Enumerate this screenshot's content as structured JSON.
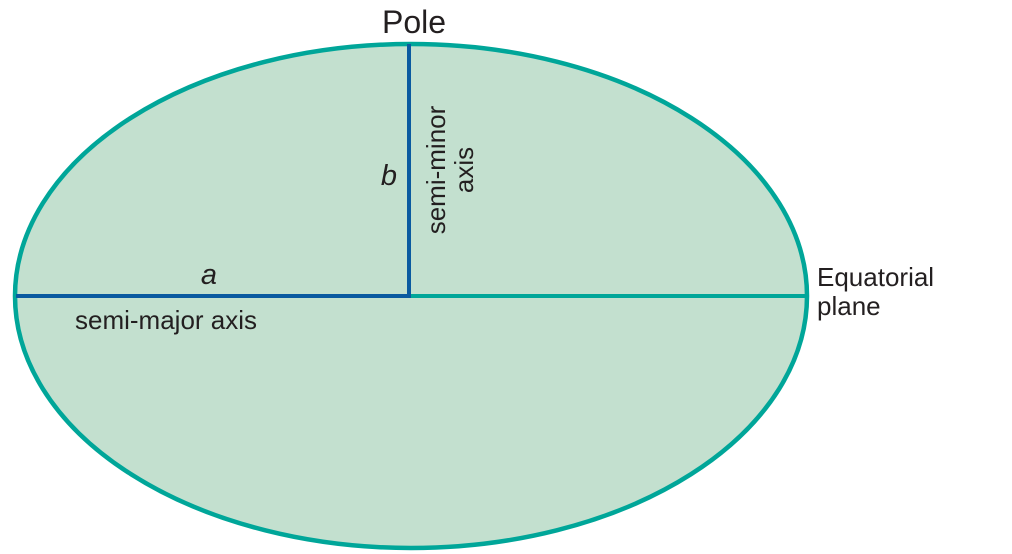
{
  "diagram": {
    "labels": {
      "pole": "Pole",
      "b": "b",
      "semi_minor_line1": "semi-minor",
      "semi_minor_line2": "axis",
      "a": "a",
      "semi_major": "semi-major axis",
      "equatorial_line1": "Equatorial",
      "equatorial_line2": "plane"
    },
    "colors": {
      "ellipse_fill": "#c3e0cf",
      "ellipse_stroke": "#00a699",
      "axis_line": "#0a5aa0",
      "equator_line": "#00a699",
      "text": "#231f20"
    }
  }
}
